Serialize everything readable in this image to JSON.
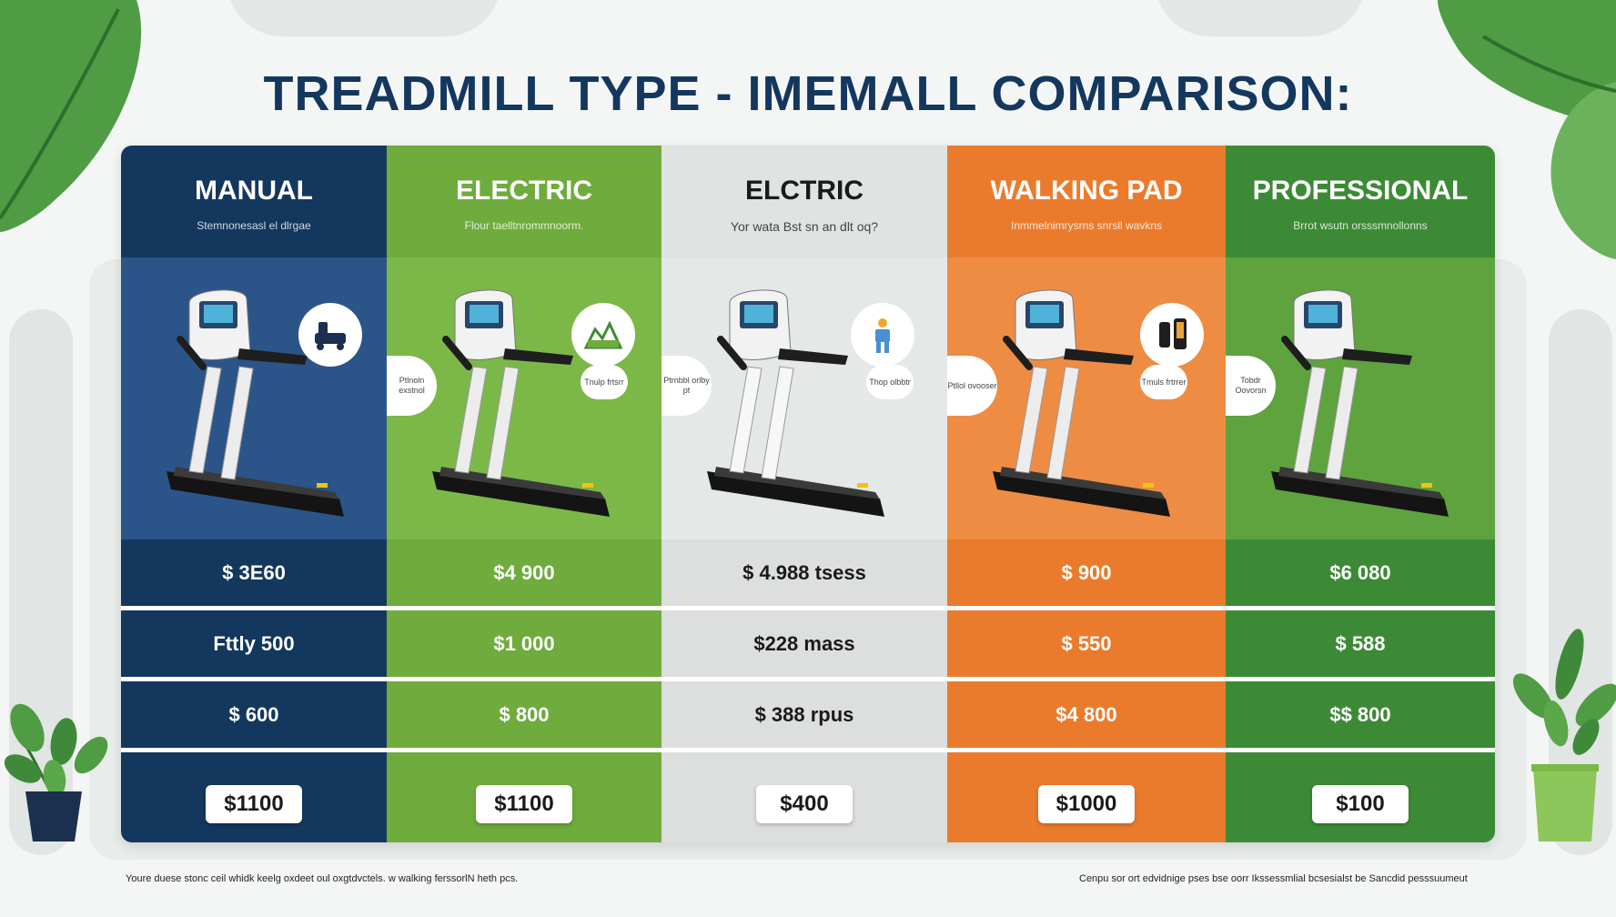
{
  "title": "TREADMILL TYPE - IMEMALL COMPARISON:",
  "columns": [
    {
      "name": "MANUAL",
      "subtitle": "Stemnonesasl el dlrgae",
      "head_color": "#14375e",
      "body_color": "#2b5589",
      "row_color": "#14375e",
      "text_color": "#ffffff",
      "icon": "treadmill-machine-icon",
      "bubble_text": "",
      "small_bubble_text": "",
      "rows": [
        "$ 3E60",
        "Fttly 500",
        "$ 600"
      ],
      "price": "$1100"
    },
    {
      "name": "ELECTRIC",
      "subtitle": "Flour taelltnrommnoorm.",
      "head_color": "#6fab3d",
      "body_color": "#7cb848",
      "row_color": "#6fab3d",
      "text_color": "#ffffff",
      "icon": "terrain-map-icon",
      "bubble_text": "Ptlnoln exstnol",
      "small_bubble_text": "Tnulp frtsrr",
      "rows": [
        "$4 900",
        "$1 000",
        "$ 800"
      ],
      "price": "$1100"
    },
    {
      "name": "ELCTRIC",
      "subtitle": "Yor wata Bst sn an dlt oq?",
      "head_color": "#dfe3e2",
      "body_color": "#e4e8e7",
      "row_color": "#dcdfde",
      "text_color": "#1a1a1a",
      "icon": "person-workout-icon",
      "bubble_text": "Ptrnbbl orlby pt",
      "small_bubble_text": "Thop olbbtr",
      "rows": [
        "$ 4.988 tsess",
        "$228 mass",
        "$ 388 rpus"
      ],
      "price": "$400"
    },
    {
      "name": "WALKING PAD",
      "subtitle": "Inmmelnimrysrns snrsll wavkns",
      "head_color": "#ea7b2d",
      "body_color": "#ef8c43",
      "row_color": "#ea7b2d",
      "text_color": "#ffffff",
      "icon": "phone-device-icon",
      "bubble_text": "Ptllol ovooser",
      "small_bubble_text": "Tmuls frtrrer",
      "rows": [
        "$ 900",
        "$ 550",
        "$4 800"
      ],
      "price": "$1000"
    },
    {
      "name": "PROFESSIONAL",
      "subtitle": "Brrot wsutn orsssmnollonns",
      "head_color": "#3d8a36",
      "body_color": "#5ea33e",
      "row_color": "#3d8a36",
      "text_color": "#ffffff",
      "icon": "",
      "bubble_text": "Tobdr Oovorsn",
      "small_bubble_text": "",
      "rows": [
        "$6 080",
        "$ 588",
        "$$ 800"
      ],
      "price": "$100"
    }
  ],
  "footer": {
    "left": "Youre duese stonc ceil whidk keelg   oxdeet oul oxgtdvctels.   w   walking ferssorlN heth pcs.",
    "right": "Cenpu sor ort edvidnige pses bse oorr Ikssessmlial bcsesialst be Sancdid pesssuumeut"
  },
  "colors": {
    "title": "#14375e",
    "leaf_green": "#4f9c45",
    "leaf_light": "#6cb25a",
    "pot_navy": "#1b2f4f",
    "pot_green": "#8dc65a"
  }
}
